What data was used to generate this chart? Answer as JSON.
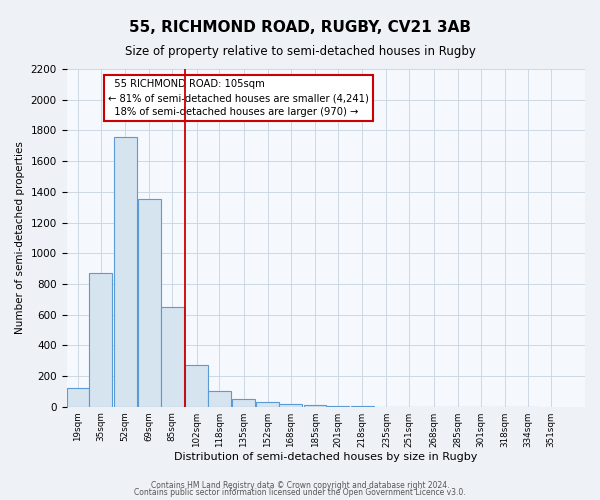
{
  "title": "55, RICHMOND ROAD, RUGBY, CV21 3AB",
  "subtitle": "Size of property relative to semi-detached houses in Rugby",
  "xlabel": "Distribution of semi-detached houses by size in Rugby",
  "ylabel": "Number of semi-detached properties",
  "bar_fill_color": "#d6e4f0",
  "bar_edge_color": "#5b9bd5",
  "bin_labels": [
    "19sqm",
    "35sqm",
    "52sqm",
    "69sqm",
    "85sqm",
    "102sqm",
    "118sqm",
    "135sqm",
    "152sqm",
    "168sqm",
    "185sqm",
    "201sqm",
    "218sqm",
    "235sqm",
    "251sqm",
    "268sqm",
    "285sqm",
    "301sqm",
    "318sqm",
    "334sqm",
    "351sqm"
  ],
  "bin_left_edges": [
    19,
    35,
    52,
    69,
    85,
    102,
    118,
    135,
    152,
    168,
    185,
    201,
    218,
    235,
    251,
    268,
    285,
    301,
    318,
    334
  ],
  "bin_width": 16,
  "bar_heights": [
    120,
    870,
    1760,
    1350,
    650,
    270,
    100,
    50,
    30,
    15,
    10,
    5,
    5,
    0,
    0,
    0,
    0,
    0,
    0,
    0
  ],
  "ylim": [
    0,
    2200
  ],
  "yticks": [
    0,
    200,
    400,
    600,
    800,
    1000,
    1200,
    1400,
    1600,
    1800,
    2000,
    2200
  ],
  "red_line_x": 102,
  "property_label": "55 RICHMOND ROAD: 105sqm",
  "pct_smaller": 81,
  "count_smaller": 4241,
  "pct_larger": 18,
  "count_larger": 970,
  "footer1": "Contains HM Land Registry data © Crown copyright and database right 2024.",
  "footer2": "Contains public sector information licensed under the Open Government Licence v3.0.",
  "background_color": "#eef2f7",
  "plot_bg_color": "#f5f8fd"
}
